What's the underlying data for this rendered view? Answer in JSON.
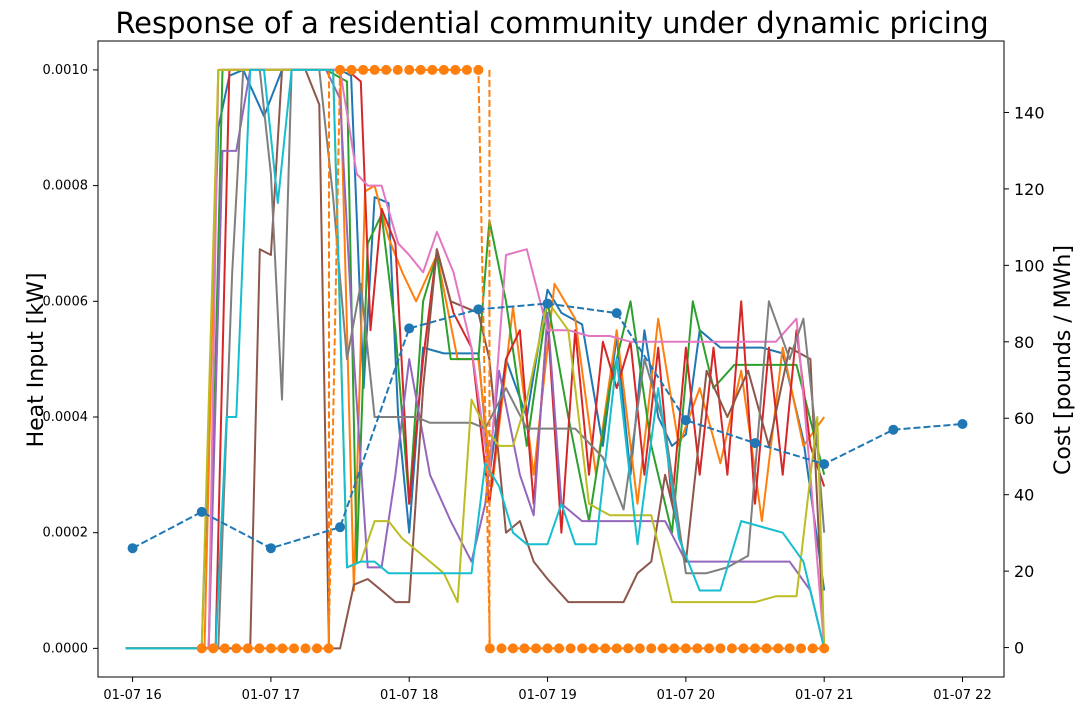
{
  "chart_data": {
    "type": "line",
    "title": "Response of a residential community under dynamic pricing",
    "ylabel_left": "Heat Input [kW]",
    "ylabel_right": "Cost [pounds / MWh]",
    "xlabel": "",
    "x_ticks": [
      "01-07 16",
      "01-07 17",
      "01-07 18",
      "01-07 19",
      "01-07 20",
      "01-07 21",
      "01-07 22"
    ],
    "x_range_hours": [
      15.75,
      22.3
    ],
    "ylim_left": [
      -4.95e-05,
      0.00105
    ],
    "y_ticks_left": [
      "0.0000",
      "0.0002",
      "0.0004",
      "0.0006",
      "0.0008",
      "0.0010"
    ],
    "ylim_right": [
      -7.7,
      158.7
    ],
    "y_ticks_right": [
      "0",
      "20",
      "40",
      "60",
      "80",
      "100",
      "120",
      "140"
    ],
    "grid": false,
    "legend": "none",
    "price_series": {
      "color": "#1f77b4",
      "style": "dashed",
      "marker": "circle",
      "axis": "right",
      "x": [
        16.0,
        16.5,
        17.0,
        17.5,
        18.0,
        18.5,
        19.0,
        19.5,
        20.0,
        20.5,
        21.0,
        21.5,
        22.0
      ],
      "y": [
        26,
        35.5,
        26,
        31.5,
        83.5,
        88.5,
        90,
        87.5,
        59.5,
        53.5,
        48,
        57,
        58.5
      ]
    },
    "control_series": {
      "color": "#ff7f0e",
      "style": "dashed",
      "marker": "circle",
      "axis": "left",
      "x": [
        16.5,
        16.583,
        16.667,
        16.75,
        16.833,
        16.917,
        17.0,
        17.083,
        17.167,
        17.25,
        17.333,
        17.417,
        17.5,
        17.583,
        17.667,
        17.75,
        17.833,
        17.917,
        18.0,
        18.083,
        18.167,
        18.25,
        18.333,
        18.417,
        18.5,
        18.583,
        18.667,
        18.75,
        18.833,
        18.917,
        19.0,
        19.083,
        19.167,
        19.25,
        19.333,
        19.417,
        19.5,
        19.583,
        19.667,
        19.75,
        19.833,
        19.917,
        20.0,
        20.083,
        20.167,
        20.25,
        20.333,
        20.417,
        20.5,
        20.583,
        20.667,
        20.75,
        20.833,
        20.917,
        21.0
      ],
      "y": [
        0,
        0,
        0,
        0,
        0,
        0,
        0,
        0,
        0,
        0,
        0,
        0,
        0.001,
        0.001,
        0.001,
        0.001,
        0.001,
        0.001,
        0.001,
        0.001,
        0.001,
        0.001,
        0.001,
        0.001,
        0.001,
        0,
        0,
        0,
        0,
        0,
        0,
        0,
        0,
        0,
        0,
        0,
        0,
        0,
        0,
        0,
        0,
        0,
        0,
        0,
        0,
        0,
        0,
        0,
        0,
        0,
        0,
        0,
        0,
        0,
        0
      ],
      "step_edges": [
        [
          17.42,
          0,
          17.42,
          0.001
        ],
        [
          18.58,
          0.001,
          18.58,
          0
        ]
      ]
    },
    "household_series": [
      {
        "color": "#1f77b4",
        "x": [
          15.95,
          16.5,
          16.62,
          16.7,
          16.8,
          16.95,
          17.08,
          17.2,
          17.35,
          17.5,
          17.58,
          17.67,
          17.75,
          17.85,
          17.92,
          18.0,
          18.1,
          18.25,
          18.4,
          18.5,
          18.58,
          18.7,
          18.85,
          19.0,
          19.1,
          19.25,
          19.4,
          19.5,
          19.6,
          19.7,
          19.8,
          19.9,
          20.0,
          20.1,
          20.25,
          20.4,
          20.55,
          20.7,
          20.85,
          21.0
        ],
        "y": [
          0,
          0,
          0.0009,
          0.00099,
          0.001,
          0.00092,
          0.001,
          0.001,
          0.001,
          0.001,
          0.00099,
          0.00045,
          0.00078,
          0.00077,
          0.0004,
          0.0002,
          0.00052,
          0.00051,
          0.00051,
          0.00051,
          0.0003,
          0.0005,
          0.0004,
          0.00062,
          0.00058,
          0.00056,
          0.00035,
          0.00054,
          0.0003,
          0.00055,
          0.0004,
          0.00035,
          0.00037,
          0.00055,
          0.00052,
          0.00052,
          0.00052,
          0.00051,
          0.00036,
          0.0001
        ]
      },
      {
        "color": "#ff7f0e",
        "x": [
          15.95,
          16.52,
          16.62,
          16.75,
          16.9,
          17.05,
          17.2,
          17.35,
          17.5,
          17.6,
          17.68,
          17.75,
          17.85,
          17.95,
          18.05,
          18.2,
          18.35,
          18.5,
          18.6,
          18.75,
          18.9,
          19.05,
          19.2,
          19.35,
          19.5,
          19.65,
          19.8,
          19.95,
          20.1,
          20.25,
          20.4,
          20.55,
          20.7,
          20.85,
          21.0
        ],
        "y": [
          0,
          0,
          0.001,
          0.001,
          0.001,
          0.001,
          0.001,
          0.001,
          0.001,
          0.0001,
          0.00079,
          0.0008,
          0.00071,
          0.00065,
          0.0006,
          0.00068,
          0.0005,
          0.0005,
          0.00028,
          0.00059,
          0.0003,
          0.00063,
          0.00057,
          0.0003,
          0.00055,
          0.00025,
          0.00057,
          0.00035,
          0.00045,
          0.00032,
          0.00048,
          0.00022,
          0.00052,
          0.00035,
          0.0004
        ]
      },
      {
        "color": "#2ca02c",
        "x": [
          15.95,
          16.55,
          16.65,
          16.8,
          16.95,
          17.1,
          17.25,
          17.4,
          17.55,
          17.62,
          17.7,
          17.8,
          17.9,
          18.0,
          18.1,
          18.2,
          18.3,
          18.4,
          18.5,
          18.58,
          18.7,
          18.85,
          19.0,
          19.15,
          19.3,
          19.45,
          19.6,
          19.75,
          19.9,
          20.05,
          20.2,
          20.35,
          20.5,
          20.65,
          20.8,
          21.0
        ],
        "y": [
          0,
          0,
          0.001,
          0.001,
          0.001,
          0.001,
          0.001,
          0.001,
          0.00098,
          0.00015,
          0.0007,
          0.00075,
          0.00055,
          0.00025,
          0.0006,
          0.00068,
          0.0005,
          0.0005,
          0.0005,
          0.00074,
          0.0006,
          0.00035,
          0.0006,
          0.0004,
          0.00022,
          0.00045,
          0.0006,
          0.00035,
          0.0002,
          0.0006,
          0.00045,
          0.00049,
          0.00049,
          0.00049,
          0.00049,
          0.0003
        ]
      },
      {
        "color": "#d62728",
        "x": [
          15.95,
          16.6,
          16.7,
          16.85,
          17.0,
          17.15,
          17.3,
          17.45,
          17.55,
          17.65,
          17.72,
          17.8,
          17.9,
          18.0,
          18.1,
          18.2,
          18.32,
          18.45,
          18.58,
          18.7,
          18.8,
          18.9,
          19.0,
          19.1,
          19.2,
          19.3,
          19.4,
          19.5,
          19.6,
          19.7,
          19.8,
          19.9,
          20.0,
          20.1,
          20.2,
          20.3,
          20.4,
          20.5,
          20.6,
          20.7,
          20.8,
          20.9,
          21.0
        ],
        "y": [
          0,
          0,
          0.001,
          0.001,
          0.001,
          0.001,
          0.001,
          0.001,
          0.001,
          0.00098,
          0.00055,
          0.00076,
          0.0007,
          0.00025,
          0.0005,
          0.00069,
          0.00058,
          0.00052,
          0.00025,
          0.0005,
          0.00055,
          0.00025,
          0.00057,
          0.0002,
          0.00055,
          0.0003,
          0.00053,
          0.00045,
          0.00053,
          0.0003,
          0.00052,
          0.00025,
          0.00052,
          0.0003,
          0.00052,
          0.0003,
          0.0006,
          0.00025,
          0.00052,
          0.0003,
          0.00055,
          0.00035,
          0.00028
        ]
      },
      {
        "color": "#9467bd",
        "x": [
          15.95,
          16.55,
          16.65,
          16.75,
          16.85,
          16.95,
          17.1,
          17.25,
          17.4,
          17.5,
          17.6,
          17.7,
          17.8,
          17.9,
          18.0,
          18.15,
          18.3,
          18.45,
          18.55,
          18.65,
          18.8,
          18.9,
          19.0,
          19.1,
          19.25,
          19.4,
          19.55,
          19.7,
          19.85,
          20.0,
          20.15,
          20.3,
          20.45,
          20.6,
          20.75,
          20.9,
          21.0
        ],
        "y": [
          0,
          0,
          0.00086,
          0.00086,
          0.001,
          0.001,
          0.001,
          0.001,
          0.001,
          0.00095,
          0.0005,
          0.00014,
          0.00014,
          0.0003,
          0.0005,
          0.0003,
          0.00022,
          0.00015,
          0.00025,
          0.00048,
          0.0003,
          0.00023,
          0.00058,
          0.00025,
          0.00022,
          0.00022,
          0.00022,
          0.00022,
          0.00022,
          0.00015,
          0.00015,
          0.00015,
          0.00015,
          0.00015,
          0.00015,
          0.0001,
          0
        ]
      },
      {
        "color": "#8c564b",
        "x": [
          15.95,
          16.85,
          16.92,
          17.0,
          17.08,
          17.15,
          17.25,
          17.35,
          17.42,
          17.5,
          17.6,
          17.7,
          17.8,
          17.9,
          18.0,
          18.1,
          18.2,
          18.3,
          18.4,
          18.5,
          18.58,
          18.7,
          18.8,
          18.9,
          19.0,
          19.15,
          19.3,
          19.45,
          19.55,
          19.65,
          19.75,
          19.85,
          20.0,
          20.15,
          20.3,
          20.45,
          20.6,
          20.75,
          20.9,
          21.0
        ],
        "y": [
          0,
          0,
          0.00069,
          0.00068,
          0.001,
          0.001,
          0.001,
          0.00094,
          0,
          0,
          0.00011,
          0.00012,
          0.0001,
          8e-05,
          8e-05,
          0.00045,
          0.00069,
          0.0006,
          0.00059,
          0.00058,
          0.0005,
          0.0002,
          0.00022,
          0.00015,
          0.00012,
          8e-05,
          8e-05,
          8e-05,
          8e-05,
          0.00013,
          0.00015,
          0.0003,
          0.00015,
          0.00048,
          0.0004,
          0.00048,
          0.00035,
          0.00052,
          0.0005,
          0
        ]
      },
      {
        "color": "#e377c2",
        "x": [
          15.95,
          16.55,
          16.62,
          16.75,
          16.9,
          17.05,
          17.2,
          17.35,
          17.5,
          17.62,
          17.7,
          17.8,
          17.92,
          18.0,
          18.1,
          18.2,
          18.32,
          18.45,
          18.58,
          18.7,
          18.85,
          19.0,
          19.15,
          19.3,
          19.45,
          19.6,
          19.75,
          19.9,
          20.05,
          20.2,
          20.35,
          20.5,
          20.65,
          20.8,
          20.9,
          21.0
        ],
        "y": [
          0,
          0,
          0.001,
          0.001,
          0.001,
          0.001,
          0.001,
          0.001,
          0.001,
          0.00082,
          0.0008,
          0.0008,
          0.0007,
          0.00068,
          0.00065,
          0.00072,
          0.00065,
          0.00052,
          0.0003,
          0.00068,
          0.00069,
          0.00055,
          0.00055,
          0.00054,
          0.00054,
          0.00053,
          0.00053,
          0.00053,
          0.00053,
          0.00053,
          0.00053,
          0.00053,
          0.00053,
          0.00057,
          0.0003,
          0
        ]
      },
      {
        "color": "#7f7f7f",
        "x": [
          15.95,
          16.62,
          16.72,
          16.8,
          16.92,
          17.0,
          17.08,
          17.15,
          17.25,
          17.35,
          17.45,
          17.55,
          17.65,
          17.75,
          17.85,
          17.95,
          18.05,
          18.15,
          18.3,
          18.45,
          18.55,
          18.7,
          18.85,
          19.0,
          19.2,
          19.4,
          19.55,
          19.7,
          19.85,
          20.0,
          20.15,
          20.3,
          20.45,
          20.6,
          20.75,
          20.85,
          20.95,
          21.0
        ],
        "y": [
          0,
          0,
          0.00065,
          0.001,
          0.001,
          0.00082,
          0.00043,
          0.001,
          0.001,
          0.001,
          0.00078,
          0.0005,
          0.00063,
          0.0004,
          0.0004,
          0.0004,
          0.0004,
          0.00039,
          0.00039,
          0.00039,
          0.00038,
          0.00045,
          0.00038,
          0.00038,
          0.00038,
          0.00033,
          0.00024,
          0.0005,
          0.00038,
          0.00013,
          0.00013,
          0.00014,
          0.00016,
          0.0006,
          0.0005,
          0.00057,
          0.00035,
          0.0002
        ]
      },
      {
        "color": "#bcbd22",
        "x": [
          15.95,
          16.5,
          16.62,
          16.75,
          16.9,
          17.05,
          17.2,
          17.35,
          17.45,
          17.55,
          17.65,
          17.75,
          17.85,
          17.95,
          18.05,
          18.15,
          18.25,
          18.35,
          18.45,
          18.55,
          18.65,
          18.75,
          18.85,
          19.0,
          19.15,
          19.3,
          19.45,
          19.6,
          19.75,
          19.9,
          20.05,
          20.2,
          20.35,
          20.5,
          20.65,
          20.8,
          20.95,
          21.0
        ],
        "y": [
          0,
          0,
          0.001,
          0.001,
          0.001,
          0.001,
          0.001,
          0.001,
          0.001,
          0.00014,
          0.00015,
          0.00022,
          0.00022,
          0.00019,
          0.00017,
          0.00015,
          0.00013,
          8e-05,
          0.00043,
          0.00038,
          0.00035,
          0.00035,
          0.00043,
          0.0006,
          0.00055,
          0.00025,
          0.00023,
          0.00023,
          0.00023,
          8e-05,
          8e-05,
          8e-05,
          8e-05,
          8e-05,
          9e-05,
          9e-05,
          0.0004,
          0
        ]
      },
      {
        "color": "#17becf",
        "x": [
          15.95,
          16.6,
          16.68,
          16.75,
          16.85,
          16.95,
          17.05,
          17.15,
          17.25,
          17.35,
          17.45,
          17.55,
          17.65,
          17.75,
          17.85,
          17.95,
          18.05,
          18.15,
          18.3,
          18.45,
          18.55,
          18.65,
          18.75,
          18.85,
          19.0,
          19.1,
          19.2,
          19.35,
          19.5,
          19.65,
          19.8,
          19.95,
          20.1,
          20.25,
          20.4,
          20.55,
          20.7,
          20.85,
          21.0
        ],
        "y": [
          0,
          0,
          0.0004,
          0.0004,
          0.001,
          0.001,
          0.00077,
          0.001,
          0.001,
          0.001,
          0.001,
          0.00014,
          0.00015,
          0.00015,
          0.00013,
          0.00013,
          0.00013,
          0.00013,
          0.00013,
          0.00013,
          0.00032,
          0.00028,
          0.0002,
          0.00018,
          0.00018,
          0.00025,
          0.00018,
          0.00018,
          0.0005,
          0.00018,
          0.00045,
          0.00019,
          0.0001,
          0.0001,
          0.00022,
          0.00021,
          0.0002,
          0.00015,
          0
        ]
      }
    ]
  }
}
